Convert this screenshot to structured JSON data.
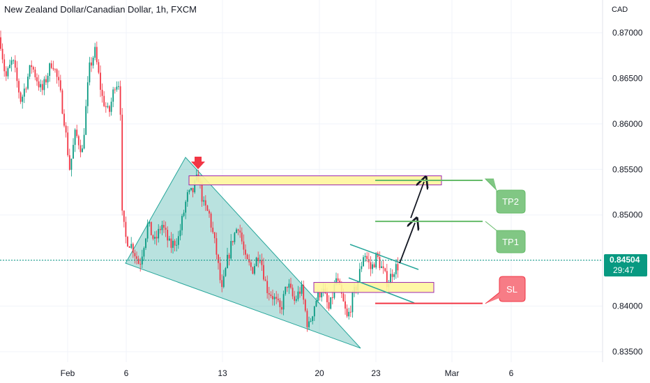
{
  "header": {
    "title": "New Zealand Dollar/Canadian Dollar, 1h, FXCM",
    "currency": "CAD"
  },
  "last_price": {
    "value": "0.84504",
    "countdown": "29:47"
  },
  "chart_data": {
    "type": "candlestick",
    "ylim": [
      0.835,
      0.872
    ],
    "y_ticks": [
      "0.87000",
      "0.86500",
      "0.86000",
      "0.85500",
      "0.85000",
      "0.84500",
      "0.84000",
      "0.83500"
    ],
    "x_ticks": [
      "Feb",
      "6",
      "13",
      "20",
      "23",
      "Mar",
      "6"
    ],
    "grid": true,
    "colors": {
      "up": "#089981",
      "down": "#f23645",
      "zone": "#fff59d",
      "zone_border": "#9c27b0",
      "triangle": "#26a69a",
      "tp": "#66bb6a",
      "sl": "#f23645"
    },
    "annotations": {
      "tp1": {
        "label": "TP1",
        "price": 0.8493
      },
      "tp2": {
        "label": "TP2",
        "price": 0.8538
      },
      "sl": {
        "label": "SL",
        "price": 0.8403
      },
      "resistance_zone": [
        0.8533,
        0.8543
      ],
      "support_zone": [
        0.8415,
        0.8426
      ]
    },
    "path": [
      [
        0,
        0.8695
      ],
      [
        8,
        0.865
      ],
      [
        18,
        0.867
      ],
      [
        30,
        0.8625
      ],
      [
        45,
        0.8665
      ],
      [
        60,
        0.8635
      ],
      [
        75,
        0.867
      ],
      [
        85,
        0.864
      ],
      [
        92,
        0.8605
      ],
      [
        100,
        0.855
      ],
      [
        108,
        0.859
      ],
      [
        118,
        0.857
      ],
      [
        128,
        0.866
      ],
      [
        136,
        0.868
      ],
      [
        146,
        0.863
      ],
      [
        156,
        0.861
      ],
      [
        165,
        0.8645
      ],
      [
        172,
        0.8645
      ],
      [
        175,
        0.85
      ],
      [
        180,
        0.8475
      ],
      [
        190,
        0.8465
      ],
      [
        200,
        0.8445
      ],
      [
        212,
        0.849
      ],
      [
        222,
        0.847
      ],
      [
        232,
        0.849
      ],
      [
        244,
        0.8465
      ],
      [
        256,
        0.8475
      ],
      [
        268,
        0.852
      ],
      [
        276,
        0.8525
      ],
      [
        284,
        0.8543
      ],
      [
        292,
        0.851
      ],
      [
        300,
        0.85
      ],
      [
        310,
        0.846
      ],
      [
        318,
        0.8415
      ],
      [
        326,
        0.845
      ],
      [
        334,
        0.8475
      ],
      [
        342,
        0.849
      ],
      [
        352,
        0.845
      ],
      [
        362,
        0.844
      ],
      [
        372,
        0.846
      ],
      [
        382,
        0.842
      ],
      [
        392,
        0.841
      ],
      [
        402,
        0.8395
      ],
      [
        412,
        0.8425
      ],
      [
        422,
        0.8405
      ],
      [
        432,
        0.842
      ],
      [
        442,
        0.8375
      ],
      [
        452,
        0.8405
      ],
      [
        462,
        0.842
      ],
      [
        472,
        0.8395
      ],
      [
        482,
        0.843
      ],
      [
        490,
        0.841
      ],
      [
        498,
        0.8385
      ],
      [
        506,
        0.841
      ],
      [
        514,
        0.843
      ],
      [
        522,
        0.846
      ],
      [
        532,
        0.844
      ],
      [
        540,
        0.8455
      ],
      [
        548,
        0.844
      ],
      [
        556,
        0.8425
      ],
      [
        564,
        0.844
      ],
      [
        572,
        0.8445
      ]
    ]
  }
}
